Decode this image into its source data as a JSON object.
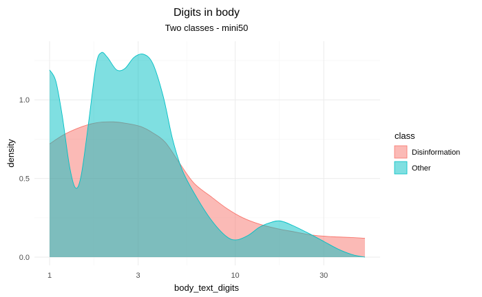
{
  "chart_data": {
    "type": "area",
    "title": "Digits in body",
    "subtitle": "Two classes - mini50",
    "xlabel": "body_text_digits",
    "ylabel": "density",
    "x_scale": "log10",
    "xlim": [
      1,
      50
    ],
    "ylim": [
      0,
      1.32
    ],
    "x_ticks": [
      {
        "value": 1,
        "label": "1"
      },
      {
        "value": 3,
        "label": "3"
      },
      {
        "value": 10,
        "label": "10"
      },
      {
        "value": 30,
        "label": "30"
      }
    ],
    "x_minor": [
      1.73,
      5.48,
      17.3
    ],
    "y_ticks": [
      {
        "value": 0,
        "label": "0.0"
      },
      {
        "value": 0.5,
        "label": "0.5"
      },
      {
        "value": 1.0,
        "label": "1.0"
      }
    ],
    "y_minor": [
      0.25,
      0.75,
      1.25
    ],
    "grid": true,
    "legend": {
      "title": "class",
      "position": "right"
    },
    "series": [
      {
        "name": "Disinformation",
        "color": "#F8766D",
        "points": [
          [
            1.0,
            0.72
          ],
          [
            1.2,
            0.78
          ],
          [
            1.5,
            0.83
          ],
          [
            1.8,
            0.855
          ],
          [
            2.2,
            0.86
          ],
          [
            2.6,
            0.85
          ],
          [
            3.1,
            0.83
          ],
          [
            3.6,
            0.79
          ],
          [
            4.2,
            0.73
          ],
          [
            5.0,
            0.6
          ],
          [
            6.0,
            0.47
          ],
          [
            7.5,
            0.38
          ],
          [
            9.0,
            0.31
          ],
          [
            11.0,
            0.25
          ],
          [
            13.5,
            0.21
          ],
          [
            17.0,
            0.18
          ],
          [
            21.0,
            0.16
          ],
          [
            26.0,
            0.14
          ],
          [
            33.0,
            0.13
          ],
          [
            42.0,
            0.125
          ],
          [
            50.0,
            0.12
          ]
        ]
      },
      {
        "name": "Other",
        "color": "#00BFC4",
        "points": [
          [
            1.0,
            1.19
          ],
          [
            1.08,
            1.12
          ],
          [
            1.17,
            0.9
          ],
          [
            1.28,
            0.58
          ],
          [
            1.38,
            0.44
          ],
          [
            1.48,
            0.52
          ],
          [
            1.62,
            0.85
          ],
          [
            1.78,
            1.22
          ],
          [
            1.9,
            1.3
          ],
          [
            2.05,
            1.27
          ],
          [
            2.3,
            1.19
          ],
          [
            2.55,
            1.2
          ],
          [
            2.85,
            1.27
          ],
          [
            3.2,
            1.29
          ],
          [
            3.6,
            1.23
          ],
          [
            4.1,
            1.02
          ],
          [
            4.6,
            0.75
          ],
          [
            5.2,
            0.55
          ],
          [
            6.2,
            0.38
          ],
          [
            7.5,
            0.23
          ],
          [
            9.0,
            0.13
          ],
          [
            10.2,
            0.11
          ],
          [
            11.8,
            0.14
          ],
          [
            13.5,
            0.19
          ],
          [
            15.5,
            0.22
          ],
          [
            17.5,
            0.23
          ],
          [
            20.5,
            0.2
          ],
          [
            25.0,
            0.15
          ],
          [
            30.0,
            0.1
          ],
          [
            36.0,
            0.05
          ],
          [
            43.0,
            0.015
          ],
          [
            50.0,
            0.0
          ]
        ]
      }
    ]
  }
}
